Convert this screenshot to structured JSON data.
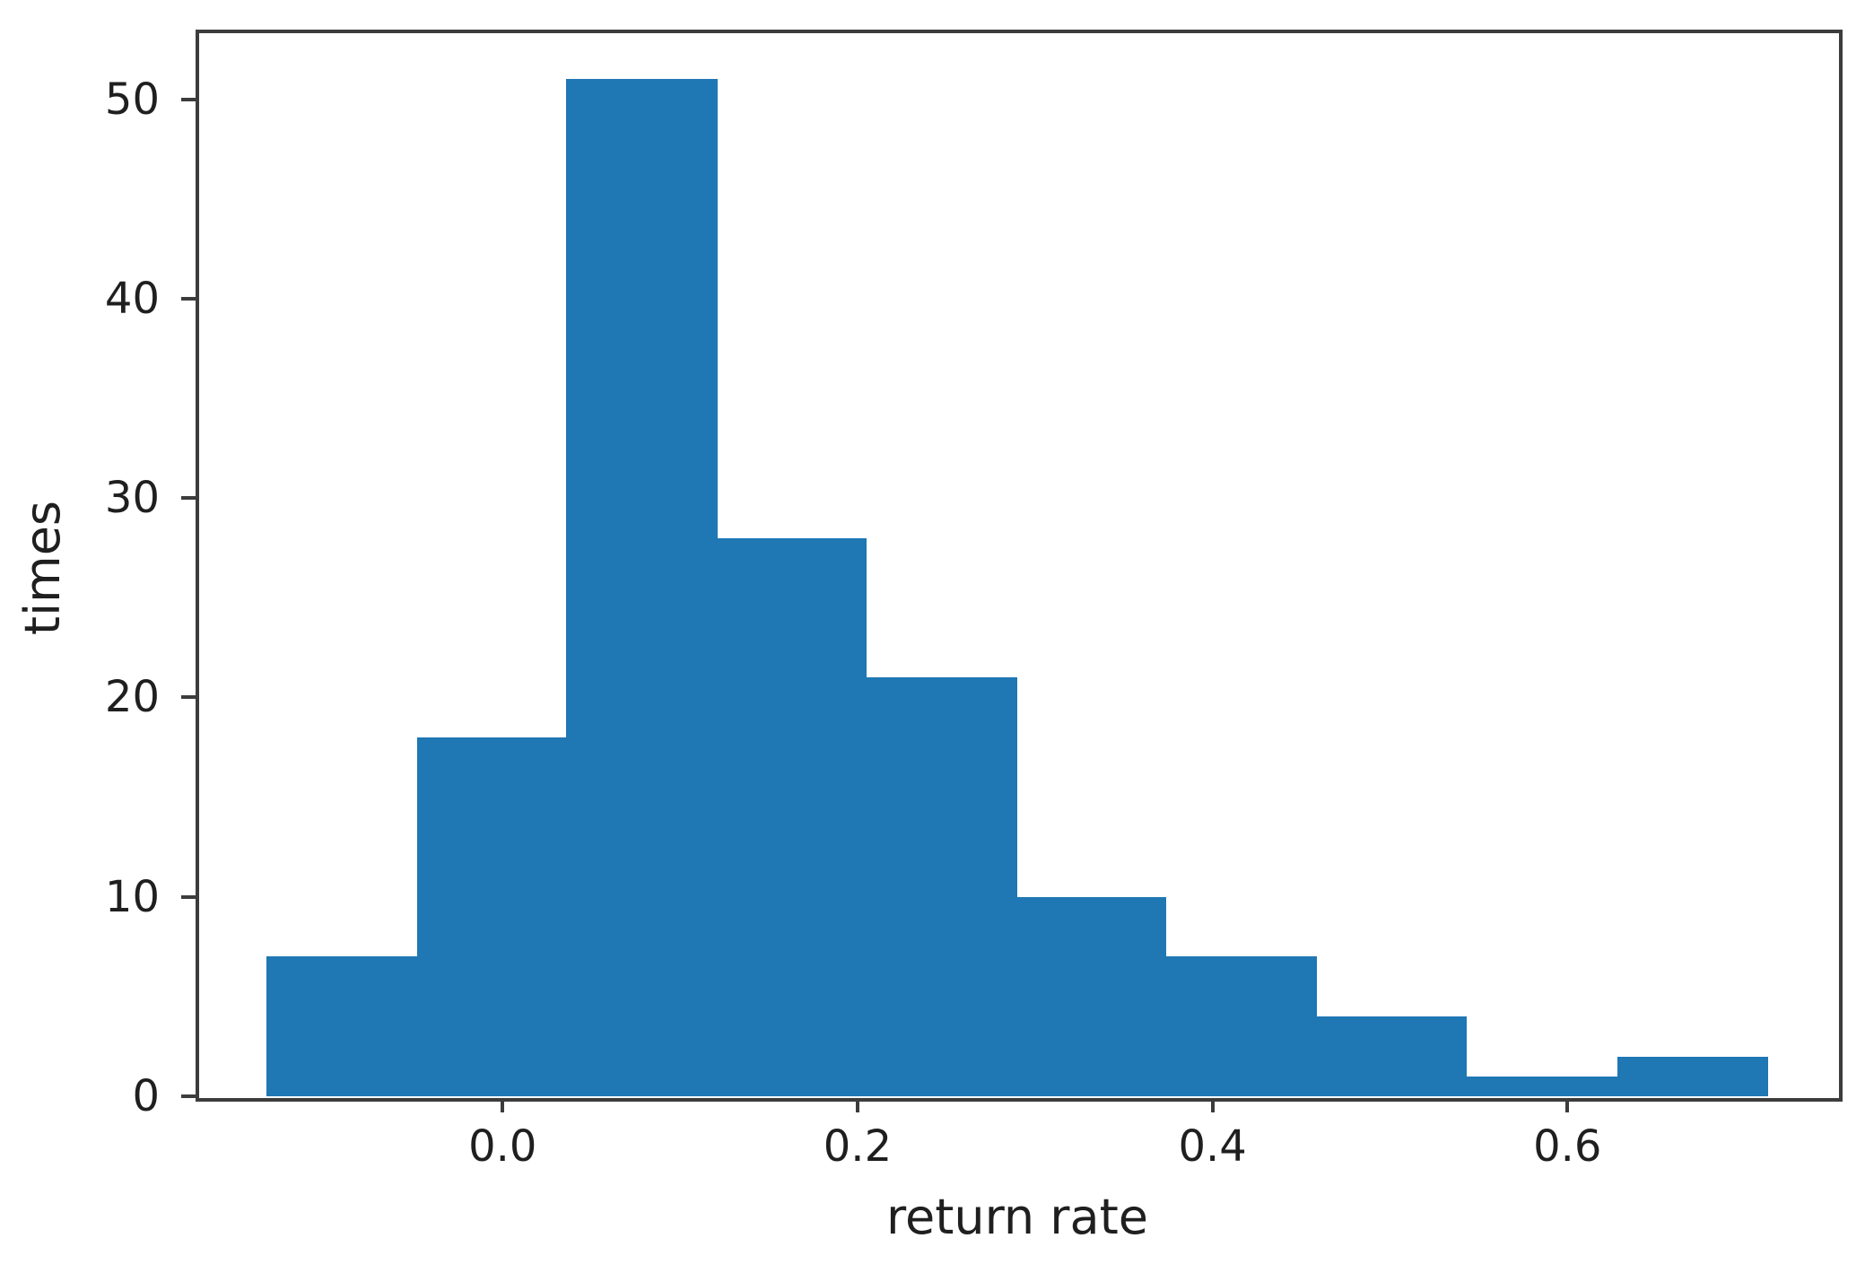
{
  "colors": {
    "background": "#ffffff",
    "bar": "#1f77b4",
    "spine": "#3c3c3c",
    "text": "#1f1f1f"
  },
  "chart_data": {
    "type": "bar",
    "subtype": "histogram",
    "title": "",
    "xlabel": "return rate",
    "ylabel": "times",
    "bin_edges": [
      -0.133,
      -0.048,
      0.036,
      0.121,
      0.205,
      0.29,
      0.374,
      0.459,
      0.543,
      0.628,
      0.713
    ],
    "counts": [
      7,
      18,
      51,
      28,
      21,
      10,
      7,
      4,
      1,
      2
    ],
    "xticks": {
      "values": [
        0.0,
        0.2,
        0.4,
        0.6
      ],
      "labels": [
        "0.0",
        "0.2",
        "0.4",
        "0.6"
      ]
    },
    "yticks": {
      "values": [
        0,
        10,
        20,
        30,
        40,
        50
      ],
      "labels": [
        "0",
        "10",
        "20",
        "30",
        "40",
        "50"
      ]
    },
    "xlim": [
      -0.172,
      0.752
    ],
    "ylim": [
      0,
      53.4
    ],
    "grid": false,
    "legend": "none"
  }
}
